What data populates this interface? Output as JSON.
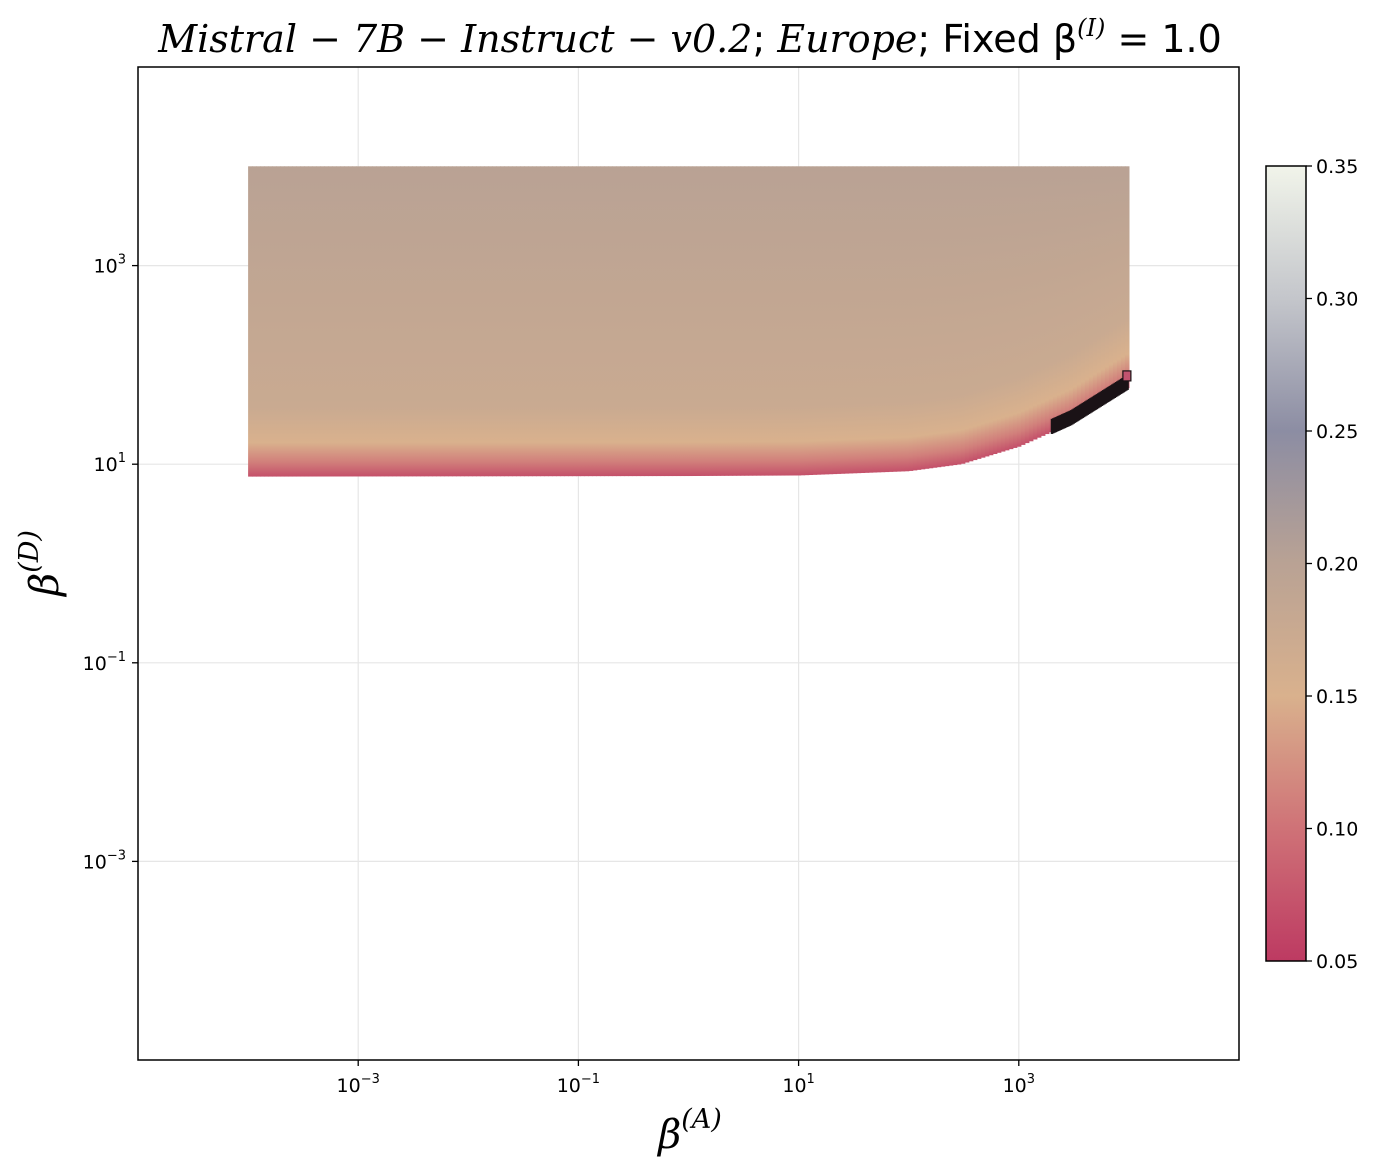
{
  "chart_data": {
    "type": "heatmap",
    "title": {
      "model": "Mistral − 7B − Instruct − v0.2",
      "region": "Europe",
      "fixed_text": "Fixed β",
      "fixed_sup": "(I)",
      "fixed_value": "= 1.0"
    },
    "xlabel": {
      "base": "β",
      "sup": "(A)"
    },
    "ylabel": {
      "base": "β",
      "sup": "(D)"
    },
    "x_scale": "log",
    "y_scale": "log",
    "xlim": [
      1e-05,
      100000.0
    ],
    "ylim": [
      1e-05,
      100000.0
    ],
    "x_ticks": [
      {
        "label": "10",
        "exp": "−3"
      },
      {
        "label": "10",
        "exp": "−1"
      },
      {
        "label": "10",
        "exp": "1"
      },
      {
        "label": "10",
        "exp": "3"
      }
    ],
    "y_ticks": [
      {
        "label": "10",
        "exp": "3"
      },
      {
        "label": "10",
        "exp": "1"
      },
      {
        "label": "10",
        "exp": "−1"
      },
      {
        "label": "10",
        "exp": "−3"
      }
    ],
    "grid": true,
    "data_region": {
      "x_range": [
        0.0001,
        10000
      ],
      "y_range_top": 10000,
      "lower_boundary": [
        {
          "x": 0.0001,
          "y": 7.5
        },
        {
          "x": 1,
          "y": 7.6
        },
        {
          "x": 10,
          "y": 7.7
        },
        {
          "x": 100,
          "y": 8.5
        },
        {
          "x": 300,
          "y": 10
        },
        {
          "x": 1000,
          "y": 15
        },
        {
          "x": 3000,
          "y": 26
        },
        {
          "x": 10000,
          "y": 60
        }
      ],
      "value_bands": [
        {
          "y_offset_factor": 1.0,
          "value": 0.07
        },
        {
          "y_offset_factor": 1.4,
          "value": 0.11
        },
        {
          "y_offset_factor": 2.2,
          "value": 0.15
        },
        {
          "y_offset_factor": 5,
          "value": 0.175
        },
        {
          "y_offset_factor": 1400,
          "value": 0.2
        }
      ],
      "dark_artifact": {
        "x_from": 2000,
        "x_to": 10000
      }
    },
    "colorbar": {
      "min": 0.05,
      "max": 0.35,
      "ticks": [
        "0.35",
        "0.30",
        "0.25",
        "0.20",
        "0.15",
        "0.10",
        "0.05"
      ],
      "tick_values": [
        0.35,
        0.3,
        0.25,
        0.2,
        0.15,
        0.1,
        0.05
      ],
      "colors": [
        {
          "v": 0.05,
          "c": "#bd3a62"
        },
        {
          "v": 0.1,
          "c": "#cf7277"
        },
        {
          "v": 0.15,
          "c": "#d9b18d"
        },
        {
          "v": 0.2,
          "c": "#b9a294"
        },
        {
          "v": 0.25,
          "c": "#8c8da3"
        },
        {
          "v": 0.3,
          "c": "#c4c6cb"
        },
        {
          "v": 0.35,
          "c": "#f1f4ea"
        }
      ]
    }
  }
}
